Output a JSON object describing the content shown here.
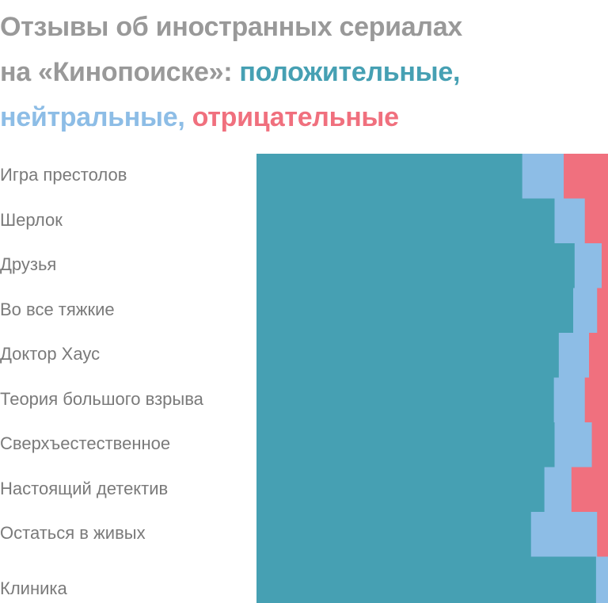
{
  "title": {
    "line1": "Отзывы об иностранных сериалах",
    "line2_prefix": "на «Кинопоиске»: ",
    "positive": "положительные,",
    "neutral": "нейтральные,",
    "negative": "отрицательные"
  },
  "colors": {
    "positive": "#46a0b3",
    "neutral": "#8dbde6",
    "negative": "#f0707e",
    "title": "#999999",
    "label": "#7a7a7a"
  },
  "chart_data": {
    "type": "bar",
    "stacked": true,
    "orientation": "horizontal",
    "normalized": true,
    "categories": [
      "Игра престолов",
      "Шерлок",
      "Друзья",
      "Во все тяжкие",
      "Доктор Хаус",
      "Теория большого взрыва",
      "Сверхъестественное",
      "Настоящий детектив",
      "Остаться в живых",
      "Клиника"
    ],
    "series": [
      {
        "name": "положительные",
        "values": [
          75.6,
          84.8,
          90.5,
          90.1,
          86.0,
          84.6,
          84.8,
          81.9,
          78.1,
          96.6
        ]
      },
      {
        "name": "нейтральные",
        "values": [
          11.8,
          8.6,
          7.7,
          6.8,
          8.6,
          8.8,
          10.6,
          7.7,
          18.8,
          3.4
        ]
      },
      {
        "name": "отрицательные",
        "values": [
          12.6,
          6.6,
          1.8,
          3.1,
          5.4,
          6.6,
          4.6,
          10.4,
          3.1,
          0.0
        ]
      }
    ],
    "xlim": [
      0,
      100
    ]
  }
}
